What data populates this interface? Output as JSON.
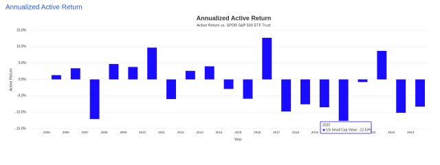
{
  "page_title": "Annualized Active Return",
  "chart_data": {
    "type": "bar",
    "title": "Annualized Active Return",
    "subtitle": "Active Return vs. SPDR S&P 500 ETF Trust",
    "x_label": "Year",
    "y_label": "Active Return",
    "categories": [
      "2005",
      "2006",
      "2007",
      "2008",
      "2009",
      "2010",
      "2011",
      "2012",
      "2013",
      "2014",
      "2015",
      "2016",
      "2017",
      "2018",
      "2019",
      "2020",
      "2021",
      "2022",
      "2023",
      "2024"
    ],
    "values": [
      1.3,
      3.4,
      -12.1,
      4.7,
      3.8,
      9.7,
      -6.0,
      2.6,
      4.0,
      -2.9,
      -5.9,
      12.7,
      -9.8,
      -7.6,
      -8.5,
      -12.63,
      -0.8,
      8.7,
      -10.2,
      -8.3
    ],
    "color": "#1a0dff",
    "ylim": [
      -15,
      15
    ],
    "yticks": [
      {
        "value": -15,
        "label": "-15.0%"
      },
      {
        "value": -10,
        "label": "-10.0%"
      },
      {
        "value": -5,
        "label": "-5.0%"
      },
      {
        "value": 0,
        "label": "0.0%"
      },
      {
        "value": 5,
        "label": "5.0%"
      },
      {
        "value": 10,
        "label": "10.0%"
      },
      {
        "value": 15,
        "label": "15.0%"
      }
    ],
    "grid": true,
    "tooltip": {
      "title": "2020",
      "label": "US Small Cap Value: -12.63%"
    }
  }
}
